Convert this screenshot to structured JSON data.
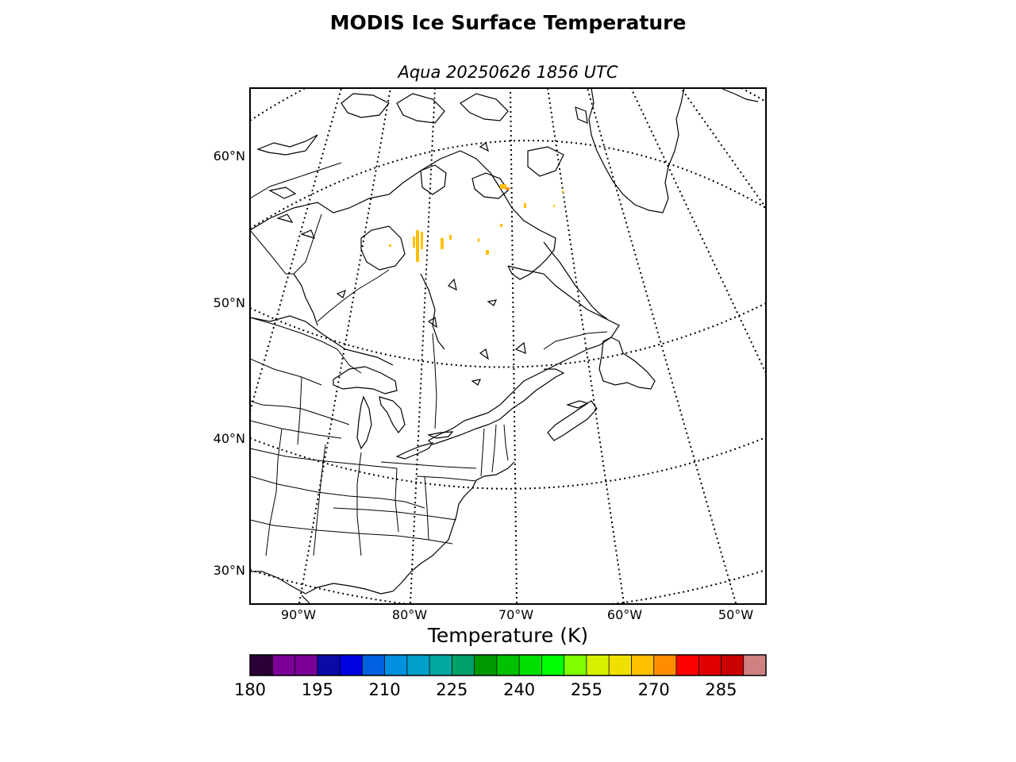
{
  "title": "MODIS Ice Surface Temperature",
  "subtitle": "Aqua 20250626 1856 UTC",
  "map": {
    "projection": "polar stereographic (north)",
    "latitude_labels": [
      "60°N",
      "50°N",
      "40°N",
      "30°N"
    ],
    "longitude_labels": [
      "90°W",
      "80°W",
      "70°W",
      "60°W",
      "50°W"
    ],
    "gridlines": "dotted",
    "features": [
      "coastlines",
      "country borders",
      "state and province borders",
      "Great Lakes",
      "Greenland",
      "Hudson Bay",
      "Newfoundland"
    ],
    "observed_ice_temperature_color": "#ffc000"
  },
  "colorbar": {
    "label": "Temperature (K)",
    "units": "K",
    "range": [
      180,
      295
    ],
    "ticks": [
      180,
      195,
      210,
      225,
      240,
      255,
      270,
      285
    ],
    "colors": [
      "#2a0038",
      "#7a0096",
      "#7a0096",
      "#0a0aa8",
      "#0000e0",
      "#0060e0",
      "#0090e0",
      "#00a0c8",
      "#00a8a0",
      "#00a068",
      "#009800",
      "#00c000",
      "#00e000",
      "#00ff00",
      "#80ff00",
      "#d8f000",
      "#f0e000",
      "#ffc000",
      "#ff8c00",
      "#ff0000",
      "#e00000",
      "#c80000",
      "#d08080"
    ]
  }
}
